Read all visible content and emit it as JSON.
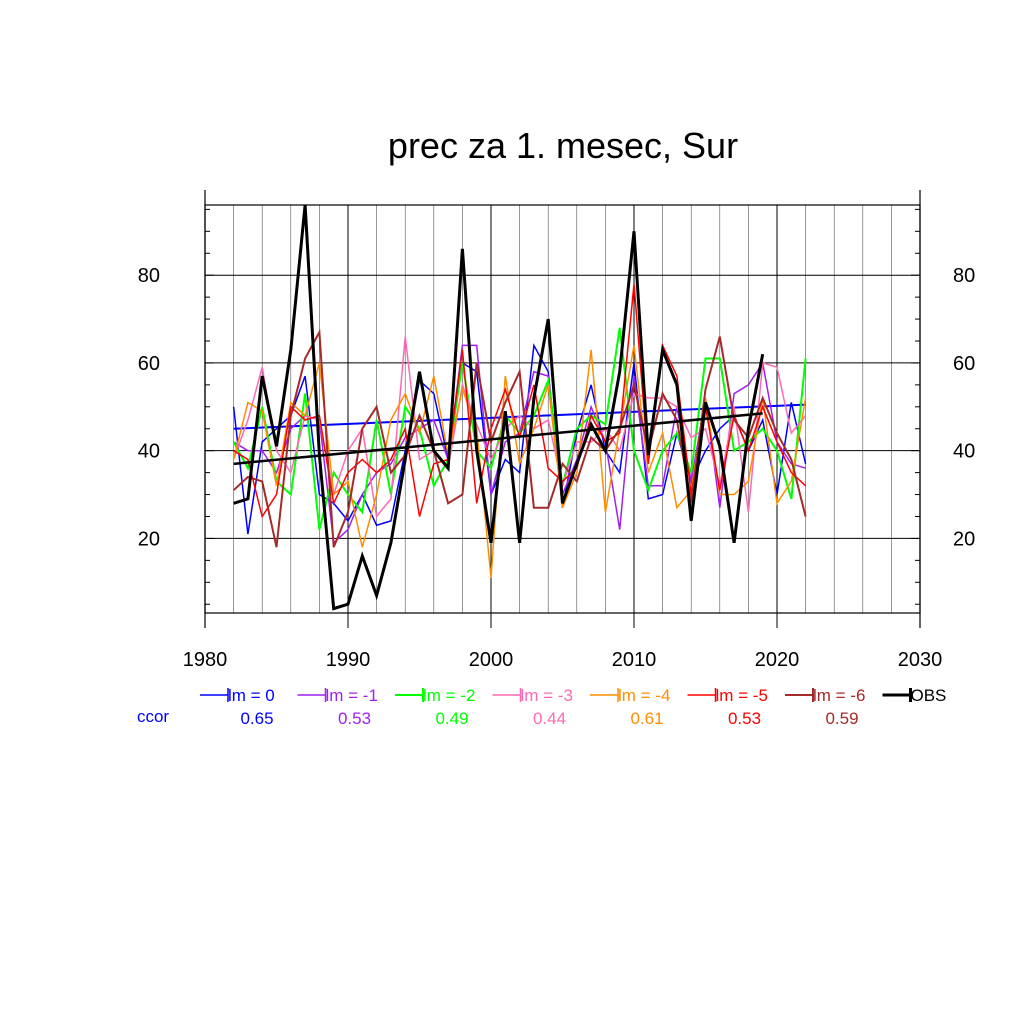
{
  "chart_data": {
    "type": "line",
    "title": "prec za 1. mesec, Sur",
    "xlabel": "",
    "ylabel": "",
    "xlim": [
      1980,
      2030
    ],
    "ylim": [
      3,
      96
    ],
    "x_ticks": [
      1980,
      1990,
      2000,
      2010,
      2020,
      2030
    ],
    "y_ticks": [
      20,
      40,
      60,
      80
    ],
    "grid": true,
    "x": [
      1982,
      1983,
      1984,
      1985,
      1986,
      1987,
      1988,
      1989,
      1990,
      1991,
      1992,
      1993,
      1994,
      1995,
      1996,
      1997,
      1998,
      1999,
      2000,
      2001,
      2002,
      2003,
      2004,
      2005,
      2006,
      2007,
      2008,
      2009,
      2010,
      2011,
      2012,
      2013,
      2014,
      2015,
      2016,
      2017,
      2018,
      2019,
      2020,
      2021,
      2022
    ],
    "series": [
      {
        "name": "lm = 0",
        "color": "#0000ff",
        "ccor": "0.65",
        "width": 1.5,
        "values": [
          50,
          21,
          42,
          45,
          48,
          57,
          30,
          28,
          24,
          30,
          23,
          24,
          40,
          56,
          53,
          38,
          60,
          58,
          30,
          38,
          35,
          64,
          58,
          27,
          44,
          55,
          40,
          35,
          60,
          29,
          30,
          44,
          33,
          40,
          45,
          48,
          40,
          47,
          30,
          51,
          37
        ],
        "trend": [
          45,
          50.5
        ]
      },
      {
        "name": "lm = -1",
        "color": "#a020f0",
        "ccor": "0.53",
        "width": 1.5,
        "values": [
          42,
          40,
          40,
          35,
          45,
          48,
          47,
          19,
          22,
          30,
          35,
          37,
          43,
          45,
          47,
          38,
          64,
          64,
          30,
          42,
          44,
          58,
          57,
          30,
          38,
          50,
          42,
          22,
          57,
          32,
          32,
          50,
          33,
          52,
          27,
          53,
          55,
          60,
          42,
          37,
          36
        ],
        "trend": null
      },
      {
        "name": "lm = -2",
        "color": "#00ff00",
        "ccor": "0.49",
        "width": 2,
        "values": [
          42,
          36,
          50,
          33,
          30,
          53,
          22,
          35,
          30,
          26,
          47,
          30,
          50,
          45,
          32,
          38,
          60,
          40,
          36,
          48,
          44,
          48,
          56,
          32,
          45,
          48,
          46,
          68,
          40,
          31,
          40,
          44,
          35,
          61,
          61,
          40,
          42,
          45,
          40,
          29,
          61
        ],
        "trend": null
      },
      {
        "name": "lm = -3",
        "color": "#ff69b4",
        "ccor": "0.44",
        "width": 1.5,
        "values": [
          38,
          47,
          59,
          40,
          35,
          48,
          47,
          30,
          40,
          45,
          25,
          29,
          66,
          38,
          40,
          36,
          55,
          46,
          38,
          45,
          48,
          45,
          47,
          32,
          42,
          42,
          45,
          40,
          53,
          52,
          52,
          50,
          43,
          45,
          32,
          50,
          26,
          60,
          59,
          44,
          48
        ],
        "trend": null
      },
      {
        "name": "lm = -4",
        "color": "#ff8c00",
        "ccor": "0.61",
        "width": 1.5,
        "values": [
          38,
          51,
          49,
          32,
          51,
          48,
          60,
          30,
          33,
          18,
          30,
          47,
          53,
          44,
          57,
          39,
          54,
          45,
          11,
          57,
          37,
          45,
          55,
          27,
          35,
          63,
          26,
          45,
          64,
          35,
          44,
          27,
          31,
          52,
          30,
          30,
          33,
          52,
          28,
          33,
          52
        ],
        "trend": null
      },
      {
        "name": "lm = -5",
        "color": "#ff0000",
        "ccor": "0.53",
        "width": 1.5,
        "values": [
          40,
          38,
          25,
          30,
          50,
          47,
          48,
          28,
          35,
          38,
          35,
          38,
          45,
          25,
          37,
          38,
          63,
          28,
          45,
          54,
          43,
          55,
          36,
          33,
          36,
          48,
          42,
          44,
          78,
          37,
          64,
          57,
          30,
          50,
          31,
          48,
          40,
          50,
          42,
          35,
          32
        ],
        "trend": null
      },
      {
        "name": "lm = -6",
        "color": "#a52a2a",
        "ccor": "0.59",
        "width": 2,
        "values": [
          31,
          34,
          33,
          18,
          48,
          61,
          67,
          18,
          26,
          45,
          50,
          35,
          39,
          48,
          40,
          28,
          30,
          60,
          42,
          51,
          58,
          27,
          27,
          37,
          33,
          43,
          40,
          45,
          55,
          40,
          53,
          47,
          28,
          54,
          66,
          47,
          43,
          52,
          44,
          38,
          25
        ],
        "trend": null
      },
      {
        "name": "OBS",
        "color": "#000000",
        "ccor": "",
        "width": 3,
        "values": [
          28,
          29,
          57,
          41,
          63,
          96,
          39,
          4,
          5,
          16,
          7,
          19,
          38,
          58,
          40,
          36,
          86,
          40,
          19,
          49,
          19,
          52,
          70,
          28,
          37,
          46,
          40,
          58,
          90,
          39,
          63,
          55,
          24,
          51,
          41,
          19,
          45,
          62,
          null,
          null,
          null
        ],
        "trend": [
          37,
          48.5
        ]
      }
    ],
    "legend": {
      "placement": "bottom",
      "ccor_label": "ccor",
      "ccor_label_color": "#0000ff"
    }
  }
}
